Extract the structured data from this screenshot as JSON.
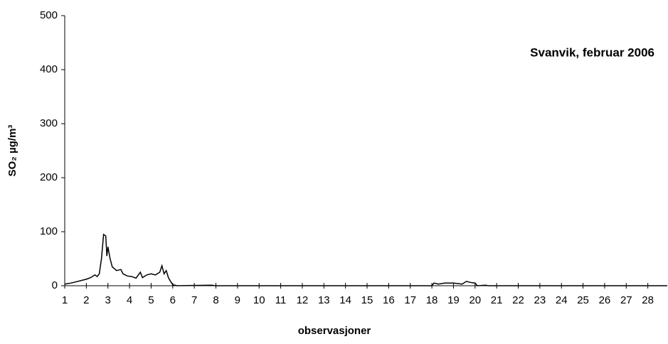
{
  "chart_data": {
    "type": "line",
    "annotation": "Svanvik, februar 2006",
    "x_label": "observasjoner",
    "y_label": "SO₂ µg/m³",
    "x": [
      1.0,
      1.3,
      1.6,
      1.8,
      2.0,
      2.2,
      2.4,
      2.5,
      2.6,
      2.7,
      2.8,
      2.9,
      2.95,
      3.0,
      3.1,
      3.2,
      3.4,
      3.6,
      3.7,
      3.9,
      4.1,
      4.3,
      4.5,
      4.6,
      4.8,
      5.0,
      5.2,
      5.4,
      5.5,
      5.6,
      5.7,
      5.8,
      5.9,
      6.0,
      6.2,
      7.8,
      8.0,
      18.0,
      18.1,
      18.3,
      18.6,
      19.0,
      19.4,
      19.6,
      19.8,
      20.0,
      20.1,
      20.5,
      20.6,
      28.9
    ],
    "series": [
      {
        "color": "#000000",
        "values": [
          3,
          5,
          8,
          10,
          12,
          15,
          20,
          17,
          22,
          50,
          95,
          92,
          55,
          72,
          50,
          35,
          28,
          30,
          22,
          18,
          17,
          14,
          25,
          15,
          20,
          22,
          20,
          25,
          37,
          22,
          28,
          15,
          8,
          2,
          0,
          1,
          0,
          0,
          5,
          3,
          5,
          5,
          3,
          8,
          6,
          5,
          0,
          1,
          0,
          0
        ]
      }
    ],
    "xlim": [
      1,
      29
    ],
    "xticks": [
      1,
      2,
      3,
      4,
      5,
      6,
      7,
      8,
      9,
      10,
      11,
      12,
      13,
      14,
      15,
      16,
      17,
      18,
      19,
      20,
      21,
      22,
      23,
      24,
      25,
      26,
      27,
      28
    ],
    "ylim": [
      0,
      500
    ],
    "yticks": [
      0,
      100,
      200,
      300,
      400,
      500
    ],
    "grid": false
  }
}
